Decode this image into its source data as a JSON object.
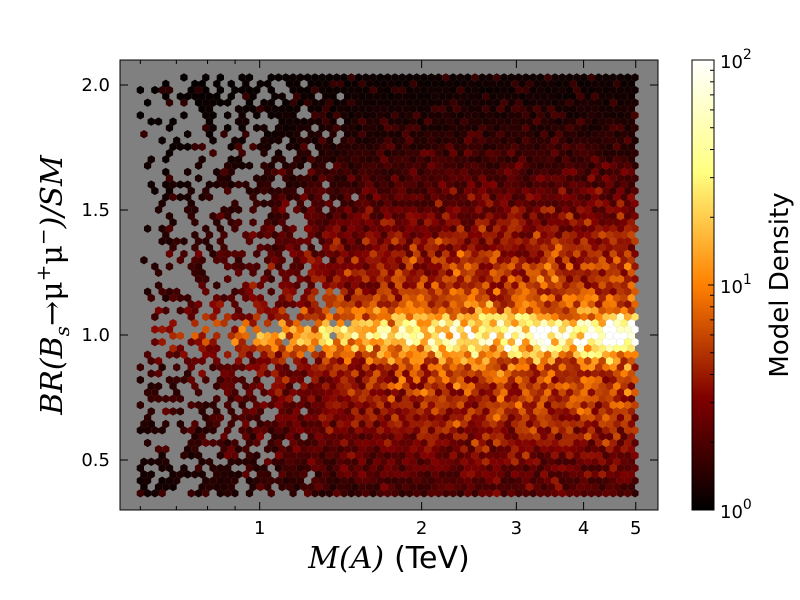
{
  "chart_data": {
    "type": "heatmap",
    "subtype": "hexbin",
    "title": "",
    "xlabel_math": "M(A)",
    "xlabel_text": "(TeV)",
    "ylabel_parts": {
      "prefix": "BR(B",
      "sub": "s",
      "arrow": "→μ",
      "sup1": "+",
      "mu": "μ",
      "sup2": "−",
      "suffix": ")/SM"
    },
    "x_scale": "log",
    "xlim": [
      0.55,
      5.5
    ],
    "ylim": [
      0.3,
      2.1
    ],
    "x_ticks": [
      {
        "value": 1,
        "label": "1"
      },
      {
        "value": 2,
        "label": "2"
      },
      {
        "value": 3,
        "label": "3"
      },
      {
        "value": 4,
        "label": "4"
      },
      {
        "value": 5,
        "label": "5"
      }
    ],
    "y_ticks": [
      {
        "value": 0.5,
        "label": "0.5"
      },
      {
        "value": 1.0,
        "label": "1.0"
      },
      {
        "value": 1.5,
        "label": "1.5"
      },
      {
        "value": 2.0,
        "label": "2.0"
      }
    ],
    "data_extent": {
      "x": [
        0.6,
        5.0
      ],
      "y": [
        0.35,
        2.03
      ]
    },
    "ridge_y": 1.0,
    "background_color": "#808080",
    "colorbar": {
      "label": "Model Density",
      "scale": "log",
      "range": [
        1,
        100
      ],
      "ticks": [
        {
          "value": 1,
          "base": "10",
          "exp": "0"
        },
        {
          "value": 10,
          "base": "10",
          "exp": "1"
        },
        {
          "value": 100,
          "base": "10",
          "exp": "2"
        }
      ],
      "colormap": "afmhot",
      "colors": [
        "#000000",
        "#800000",
        "#ff8000",
        "#ffff80",
        "#ffffff"
      ]
    }
  }
}
